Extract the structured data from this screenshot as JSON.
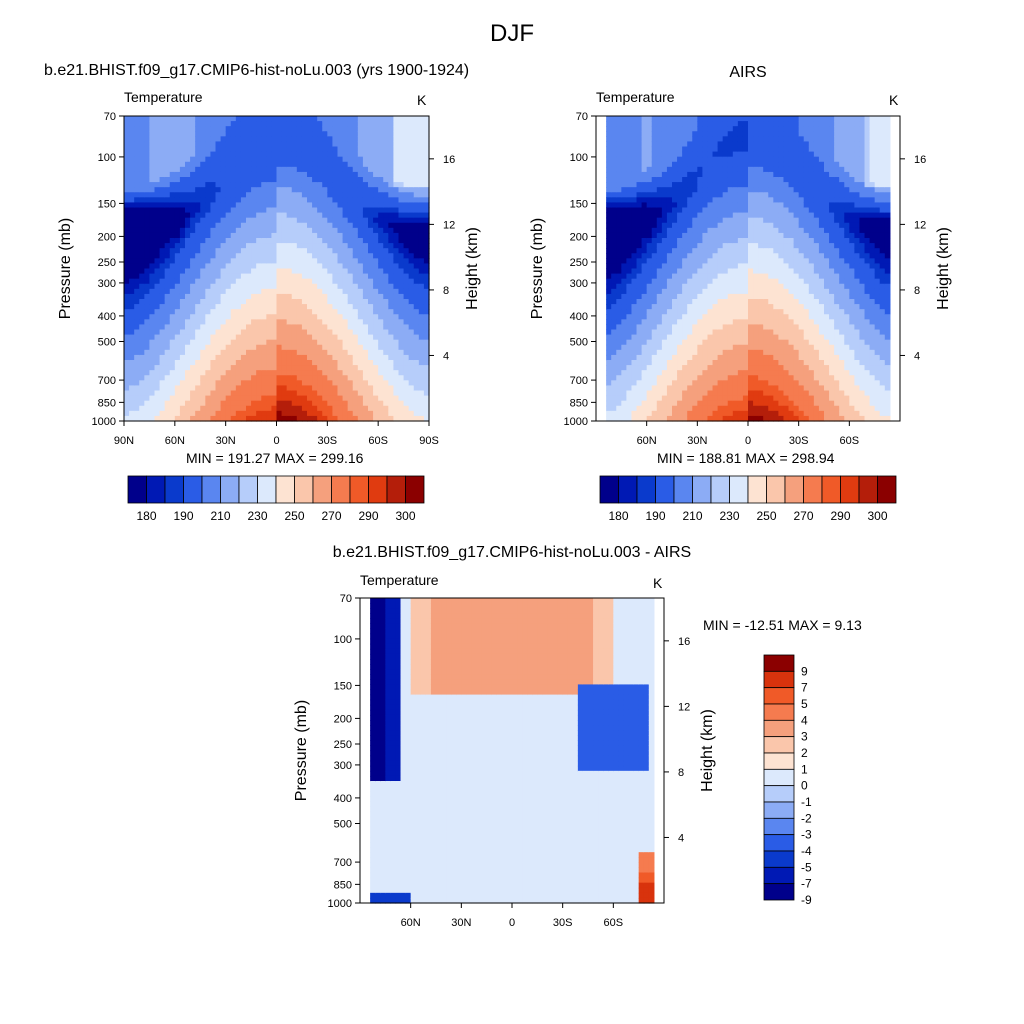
{
  "figure": {
    "title": "DJF"
  },
  "chart_data": [
    {
      "type": "contour",
      "title": "b.e21.BHIST.f09_g17.CMIP6-hist-noLu.003 (yrs 1900-1924)",
      "variable": "Temperature",
      "units": "K",
      "ylabel": "Pressure (mb)",
      "y2label": "Height (km)",
      "pressure_ticks": [
        "70",
        "100",
        "150",
        "200",
        "250",
        "300",
        "400",
        "500",
        "700",
        "850",
        "1000"
      ],
      "height_ticks": [
        "4",
        "8",
        "12",
        "16"
      ],
      "lat_ticks": [
        "90N",
        "60N",
        "30N",
        "0",
        "30S",
        "60S",
        "90S"
      ],
      "stats": "MIN = 191.27  MAX = 299.16",
      "min": 191.27,
      "max": 299.16,
      "levels": [
        180,
        185,
        190,
        200,
        210,
        220,
        230,
        240,
        250,
        260,
        270,
        280,
        285,
        290,
        295,
        300
      ],
      "colorbar_labels": [
        "180",
        "190",
        "210",
        "230",
        "250",
        "270",
        "290",
        "300"
      ]
    },
    {
      "type": "contour",
      "title": "AIRS",
      "variable": "Temperature",
      "units": "K",
      "ylabel": "Pressure (mb)",
      "y2label": "Height (km)",
      "pressure_ticks": [
        "70",
        "100",
        "150",
        "200",
        "250",
        "300",
        "400",
        "500",
        "700",
        "850",
        "1000"
      ],
      "height_ticks": [
        "4",
        "8",
        "12",
        "16"
      ],
      "lat_ticks": [
        "60N",
        "30N",
        "0",
        "30S",
        "60S"
      ],
      "stats": "MIN = 188.81  MAX = 298.94",
      "min": 188.81,
      "max": 298.94,
      "levels": [
        180,
        185,
        190,
        200,
        210,
        220,
        230,
        240,
        250,
        260,
        270,
        280,
        285,
        290,
        295,
        300
      ],
      "colorbar_labels": [
        "180",
        "190",
        "210",
        "230",
        "250",
        "270",
        "290",
        "300"
      ]
    },
    {
      "type": "contour",
      "title": "b.e21.BHIST.f09_g17.CMIP6-hist-noLu.003 - AIRS",
      "variable": "Temperature",
      "units": "K",
      "ylabel": "Pressure (mb)",
      "y2label": "Height (km)",
      "pressure_ticks": [
        "70",
        "100",
        "150",
        "200",
        "250",
        "300",
        "400",
        "500",
        "700",
        "850",
        "1000"
      ],
      "height_ticks": [
        "4",
        "8",
        "12",
        "16"
      ],
      "lat_ticks": [
        "60N",
        "30N",
        "0",
        "30S",
        "60S"
      ],
      "stats": "MIN = -12.51  MAX =   9.13",
      "min": -12.51,
      "max": 9.13,
      "levels": [
        -9,
        -7,
        -5,
        -4,
        -3,
        -2,
        -1,
        0,
        1,
        2,
        3,
        4,
        5,
        7,
        9
      ],
      "colorbar_labels": [
        "9",
        "7",
        "5",
        "4",
        "3",
        "2",
        "1",
        "0",
        "-1",
        "-2",
        "-3",
        "-4",
        "-5",
        "-7",
        "-9"
      ]
    }
  ],
  "palettes": {
    "absolute": [
      "#00008b",
      "#0019b4",
      "#0a3acc",
      "#2a5ce6",
      "#5a86f0",
      "#8cacf5",
      "#b6cdfa",
      "#dce9fc",
      "#fde3d2",
      "#fac6ab",
      "#f5a07d",
      "#f57b4f",
      "#f05a28",
      "#e03b10",
      "#b41e0a",
      "#8b0000"
    ],
    "difference": [
      "#00008b",
      "#0019b4",
      "#0a3acc",
      "#2a5ce6",
      "#5a86f0",
      "#8cacf5",
      "#b6cdfa",
      "#dce9fc",
      "#fde3d2",
      "#fac6ab",
      "#f5a07d",
      "#f57b4f",
      "#f05a28",
      "#d8330d",
      "#8b0000"
    ]
  }
}
